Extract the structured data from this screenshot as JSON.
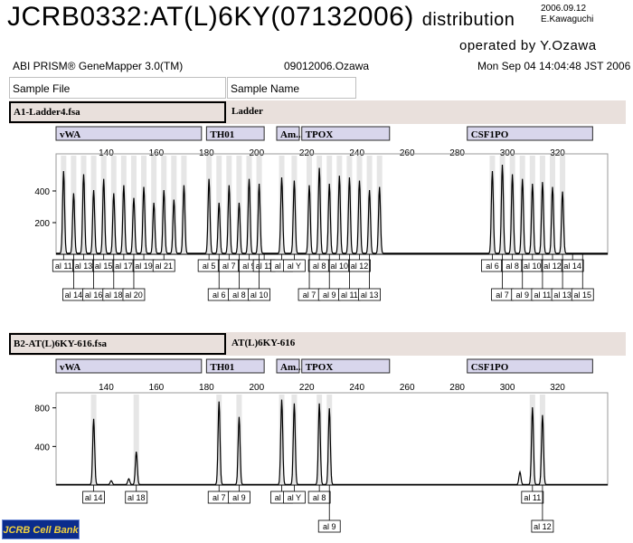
{
  "header": {
    "title": "JCRB0332:AT(L)6KY(07132006)",
    "title_suffix": "distribution",
    "date": "2006.09.12",
    "author": "E.Kawaguchi",
    "operated_by": "operated by Y.Ozawa",
    "software": "ABI PRISM® GeneMapper 3.0(TM)",
    "file": "09012006.Ozawa",
    "timestamp": "Mon Sep 04 14:04:48 JST 2006",
    "sample_file_label": "Sample File",
    "sample_name_label": "Sample Name"
  },
  "logo_text": "JCRB Cell Bank",
  "chart_data": [
    {
      "type": "line",
      "sample_file": "A1-Ladder4.fsa",
      "sample_name": "Ladder",
      "xlim": [
        120,
        340
      ],
      "x_ticks": [
        140,
        160,
        180,
        200,
        220,
        240,
        260,
        280,
        300,
        320
      ],
      "ylim": [
        0,
        600
      ],
      "y_ticks": [
        200,
        400
      ],
      "loci": [
        {
          "name": "vWA",
          "range": [
            120,
            178
          ]
        },
        {
          "name": "TH01",
          "range": [
            180,
            203
          ]
        },
        {
          "name": "Am...",
          "range": [
            208,
            217
          ]
        },
        {
          "name": "TPOX",
          "range": [
            218,
            253
          ]
        },
        {
          "name": "CSF1PO",
          "range": [
            284,
            334
          ]
        }
      ],
      "peaks": [
        {
          "x": 123,
          "y": 520
        },
        {
          "x": 127,
          "y": 380
        },
        {
          "x": 131,
          "y": 500
        },
        {
          "x": 135,
          "y": 400
        },
        {
          "x": 139,
          "y": 470
        },
        {
          "x": 143,
          "y": 380
        },
        {
          "x": 147,
          "y": 430
        },
        {
          "x": 151,
          "y": 350
        },
        {
          "x": 155,
          "y": 420
        },
        {
          "x": 159,
          "y": 320
        },
        {
          "x": 163,
          "y": 400
        },
        {
          "x": 167,
          "y": 340
        },
        {
          "x": 171,
          "y": 430
        },
        {
          "x": 181,
          "y": 470
        },
        {
          "x": 185,
          "y": 320
        },
        {
          "x": 189,
          "y": 430
        },
        {
          "x": 193,
          "y": 320
        },
        {
          "x": 197,
          "y": 470
        },
        {
          "x": 201,
          "y": 440
        },
        {
          "x": 210,
          "y": 480
        },
        {
          "x": 215,
          "y": 460
        },
        {
          "x": 221,
          "y": 430
        },
        {
          "x": 225,
          "y": 540
        },
        {
          "x": 229,
          "y": 440
        },
        {
          "x": 233,
          "y": 490
        },
        {
          "x": 237,
          "y": 480
        },
        {
          "x": 241,
          "y": 460
        },
        {
          "x": 245,
          "y": 400
        },
        {
          "x": 249,
          "y": 420
        },
        {
          "x": 294,
          "y": 520
        },
        {
          "x": 298,
          "y": 560
        },
        {
          "x": 302,
          "y": 500
        },
        {
          "x": 306,
          "y": 470
        },
        {
          "x": 310,
          "y": 440
        },
        {
          "x": 314,
          "y": 450
        },
        {
          "x": 318,
          "y": 420
        },
        {
          "x": 322,
          "y": 390
        }
      ],
      "allele_labels_row1": [
        {
          "x": 123,
          "label": "al 11"
        },
        {
          "x": 131,
          "label": "al 13"
        },
        {
          "x": 139,
          "label": "al 15"
        },
        {
          "x": 147,
          "label": "al 17"
        },
        {
          "x": 155,
          "label": "al 19"
        },
        {
          "x": 163,
          "label": "al 21"
        },
        {
          "x": 181,
          "label": "al 5"
        },
        {
          "x": 189,
          "label": "al 7"
        },
        {
          "x": 197,
          "label": "al 9"
        },
        {
          "x": 203,
          "label": "al 11"
        },
        {
          "x": 210,
          "label": "al X"
        },
        {
          "x": 215,
          "label": "al Y"
        },
        {
          "x": 225,
          "label": "al 8"
        },
        {
          "x": 233,
          "label": "al 10"
        },
        {
          "x": 241,
          "label": "al 12"
        },
        {
          "x": 294,
          "label": "al 6"
        },
        {
          "x": 302,
          "label": "al 8"
        },
        {
          "x": 310,
          "label": "al 10"
        },
        {
          "x": 318,
          "label": "al 12"
        },
        {
          "x": 326,
          "label": "al 14"
        }
      ],
      "allele_labels_row2": [
        {
          "x": 127,
          "label": "al 14"
        },
        {
          "x": 135,
          "label": "al 16"
        },
        {
          "x": 143,
          "label": "al 18"
        },
        {
          "x": 151,
          "label": "al 20"
        },
        {
          "x": 185,
          "label": "al 6"
        },
        {
          "x": 193,
          "label": "al 8"
        },
        {
          "x": 201,
          "label": "al 10"
        },
        {
          "x": 221,
          "label": "al 7"
        },
        {
          "x": 229,
          "label": "al 9"
        },
        {
          "x": 237,
          "label": "al 11"
        },
        {
          "x": 245,
          "label": "al 13"
        },
        {
          "x": 298,
          "label": "al 7"
        },
        {
          "x": 306,
          "label": "al 9"
        },
        {
          "x": 314,
          "label": "al 11"
        },
        {
          "x": 322,
          "label": "al 13"
        },
        {
          "x": 330,
          "label": "al 15"
        }
      ]
    },
    {
      "type": "line",
      "sample_file": "B2-AT(L)6KY-616.fsa",
      "sample_name": "AT(L)6KY-616",
      "xlim": [
        120,
        340
      ],
      "x_ticks": [
        140,
        160,
        180,
        200,
        220,
        240,
        260,
        280,
        300,
        320
      ],
      "ylim": [
        0,
        900
      ],
      "y_ticks": [
        400,
        800
      ],
      "loci": [
        {
          "name": "vWA",
          "range": [
            120,
            178
          ]
        },
        {
          "name": "TH01",
          "range": [
            180,
            203
          ]
        },
        {
          "name": "Am...",
          "range": [
            208,
            217
          ]
        },
        {
          "name": "TPOX",
          "range": [
            218,
            253
          ]
        },
        {
          "name": "CSF1PO",
          "range": [
            284,
            334
          ]
        }
      ],
      "peaks": [
        {
          "x": 135,
          "y": 680
        },
        {
          "x": 142,
          "y": 40
        },
        {
          "x": 149,
          "y": 60
        },
        {
          "x": 152,
          "y": 340
        },
        {
          "x": 185,
          "y": 860
        },
        {
          "x": 193,
          "y": 700
        },
        {
          "x": 210,
          "y": 880
        },
        {
          "x": 215,
          "y": 840
        },
        {
          "x": 225,
          "y": 840
        },
        {
          "x": 229,
          "y": 790
        },
        {
          "x": 305,
          "y": 130
        },
        {
          "x": 310,
          "y": 800
        },
        {
          "x": 314,
          "y": 720
        }
      ],
      "allele_labels_row1": [
        {
          "x": 135,
          "label": "al 14"
        },
        {
          "x": 152,
          "label": "al 18"
        },
        {
          "x": 185,
          "label": "al 7"
        },
        {
          "x": 193,
          "label": "al 9"
        },
        {
          "x": 210,
          "label": "al X"
        },
        {
          "x": 215,
          "label": "al Y"
        },
        {
          "x": 225,
          "label": "al 8"
        },
        {
          "x": 310,
          "label": "al 11"
        }
      ],
      "allele_labels_row2": [
        {
          "x": 229,
          "label": "al 9"
        },
        {
          "x": 314,
          "label": "al 12"
        }
      ]
    }
  ]
}
